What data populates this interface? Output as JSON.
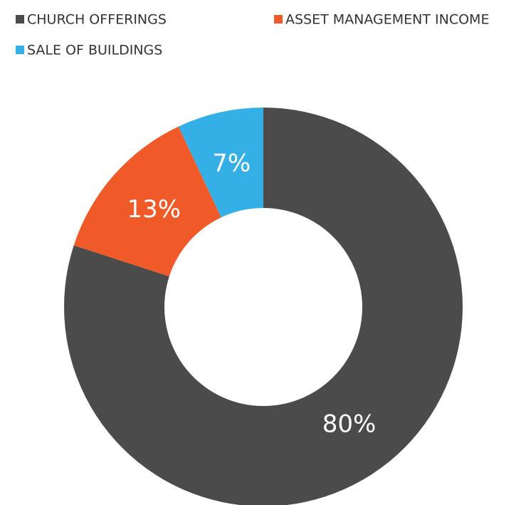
{
  "chart_data": {
    "type": "donut",
    "categories": [
      "CHURCH OFFERINGS",
      "ASSET MANAGEMENT INCOME",
      "SALE OF BUILDINGS"
    ],
    "values": [
      80,
      13,
      7
    ],
    "value_labels": [
      "80%",
      "13%",
      "7%"
    ],
    "colors": [
      "#4a4b4a",
      "#f05a28",
      "#35b0e6"
    ],
    "legend": "top"
  }
}
